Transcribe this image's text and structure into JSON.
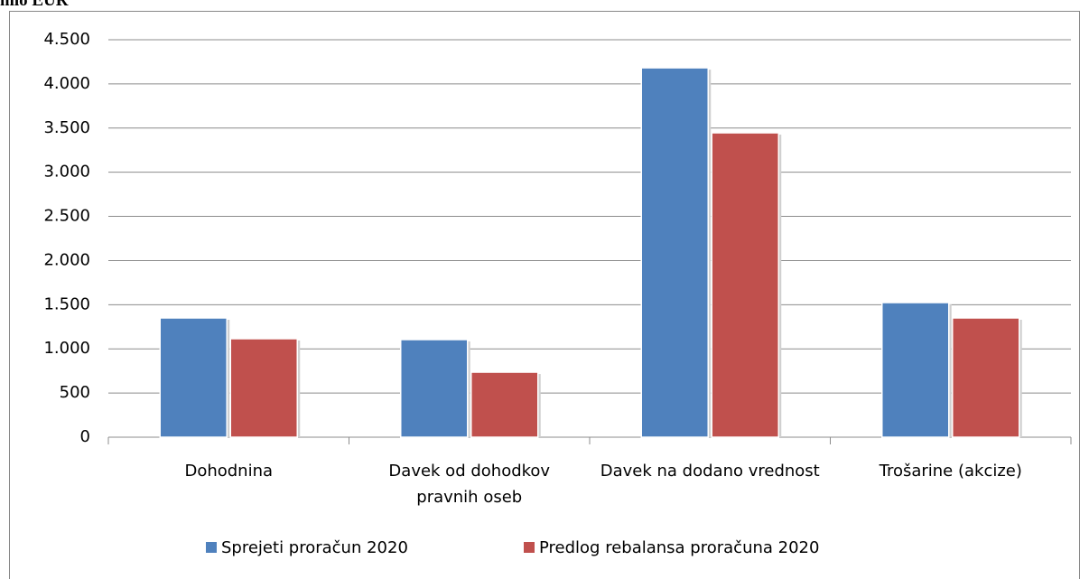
{
  "chart_data": {
    "type": "bar",
    "title": "mio EUR",
    "categories": [
      "Dohodnina",
      "Davek od dohodkov pravnih oseb",
      "Davek na dodano vrednost",
      "Trošarine (akcize)"
    ],
    "series": [
      {
        "name": "Sprejeti proračun 2020",
        "color": "#4f81bd",
        "values": [
          1350,
          1105,
          4182,
          1524
        ]
      },
      {
        "name": "Predlog rebalansa proračuna 2020",
        "color": "#c0504d",
        "values": [
          1115,
          736,
          3446,
          1350
        ]
      }
    ],
    "ylim": [
      0,
      4500
    ],
    "yticks": [
      0,
      500,
      {
        "value": 1000,
        "label": "1.000"
      },
      {
        "value": 1500,
        "label": "1.500"
      },
      {
        "value": 2000,
        "label": "2.000"
      },
      {
        "value": 2500,
        "label": "2.500"
      },
      {
        "value": 3000,
        "label": "3.000"
      },
      {
        "value": 3500,
        "label": "3.500"
      },
      {
        "value": 4000,
        "label": "4.000"
      },
      {
        "value": 4500,
        "label": "4.500"
      }
    ],
    "grid": true,
    "legend": "bottom"
  }
}
